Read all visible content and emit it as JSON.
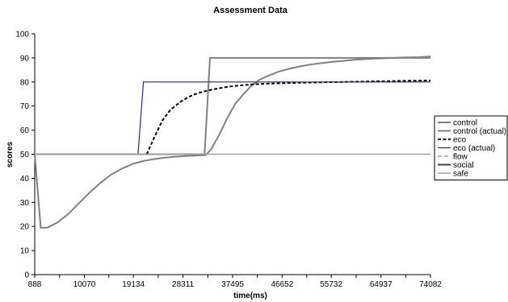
{
  "chart_data": {
    "type": "line",
    "title": "Assessment Data",
    "xlabel": "time(ms)",
    "ylabel": "scores",
    "xlim": [
      888,
      74082
    ],
    "ylim": [
      0,
      100
    ],
    "x_ticks": [
      888,
      10070,
      19134,
      28311,
      37495,
      46652,
      55732,
      64937,
      74082
    ],
    "y_ticks": [
      0,
      10,
      20,
      30,
      40,
      50,
      60,
      70,
      80,
      90,
      100
    ],
    "grid": false,
    "legend_position": "right",
    "series": [
      {
        "name": "control",
        "color": "#808080",
        "dash": "solid",
        "points": [
          [
            888,
            50
          ],
          [
            32300,
            50
          ],
          [
            33300,
            90
          ],
          [
            74082,
            90
          ]
        ]
      },
      {
        "name": "control (actual)",
        "color": "#808080",
        "dash": "solid",
        "points": [
          [
            888,
            50
          ],
          [
            2000,
            19.5
          ],
          [
            3200,
            19.5
          ],
          [
            5000,
            21.5
          ],
          [
            7000,
            25
          ],
          [
            9000,
            29.5
          ],
          [
            11000,
            34
          ],
          [
            13000,
            38
          ],
          [
            15000,
            41.5
          ],
          [
            17000,
            44
          ],
          [
            19000,
            46
          ],
          [
            21000,
            47.2
          ],
          [
            23000,
            48
          ],
          [
            25000,
            48.6
          ],
          [
            27000,
            49
          ],
          [
            29000,
            49.3
          ],
          [
            32500,
            49.6
          ],
          [
            33500,
            52
          ],
          [
            35000,
            58
          ],
          [
            36500,
            65
          ],
          [
            38000,
            71
          ],
          [
            39500,
            75
          ],
          [
            41000,
            78.5
          ],
          [
            42500,
            81
          ],
          [
            44000,
            82.5
          ],
          [
            46000,
            84.3
          ],
          [
            48000,
            85.5
          ],
          [
            50000,
            86.5
          ],
          [
            52000,
            87.3
          ],
          [
            54000,
            87.9
          ],
          [
            56000,
            88.4
          ],
          [
            58000,
            88.8
          ],
          [
            60000,
            89.2
          ],
          [
            62000,
            89.5
          ],
          [
            64000,
            89.7
          ],
          [
            66000,
            89.9
          ],
          [
            68000,
            90.1
          ],
          [
            70000,
            90.2
          ],
          [
            72000,
            90.3
          ],
          [
            74082,
            90.6
          ]
        ]
      },
      {
        "name": "eco",
        "color": "#000000",
        "dash": "dashed",
        "points": [
          [
            21600,
            50
          ],
          [
            23000,
            57
          ],
          [
            24500,
            64
          ],
          [
            26000,
            68.5
          ],
          [
            28000,
            72
          ],
          [
            30000,
            74.5
          ],
          [
            32000,
            76
          ],
          [
            34000,
            77
          ],
          [
            36000,
            77.8
          ],
          [
            38000,
            78.4
          ],
          [
            40000,
            78.8
          ],
          [
            42000,
            79.1
          ],
          [
            45000,
            79.4
          ],
          [
            50000,
            79.7
          ],
          [
            55000,
            79.9
          ],
          [
            60000,
            80.1
          ],
          [
            65000,
            80.3
          ],
          [
            70000,
            80.5
          ],
          [
            74082,
            80.6
          ]
        ]
      },
      {
        "name": "eco (actual)",
        "color": "#1f2a8f",
        "dash": "solid",
        "points": [
          [
            20000,
            50
          ],
          [
            21000,
            80
          ],
          [
            74082,
            80
          ]
        ]
      },
      {
        "name": "flow",
        "color": "#b8b8b8",
        "dash": "dashed",
        "points": []
      },
      {
        "name": "social",
        "color": "#404040",
        "dash": "solid",
        "points": []
      },
      {
        "name": "safe",
        "color": "#a0a0a0",
        "dash": "solid",
        "points": [
          [
            888,
            50
          ],
          [
            74082,
            50
          ]
        ]
      }
    ]
  }
}
